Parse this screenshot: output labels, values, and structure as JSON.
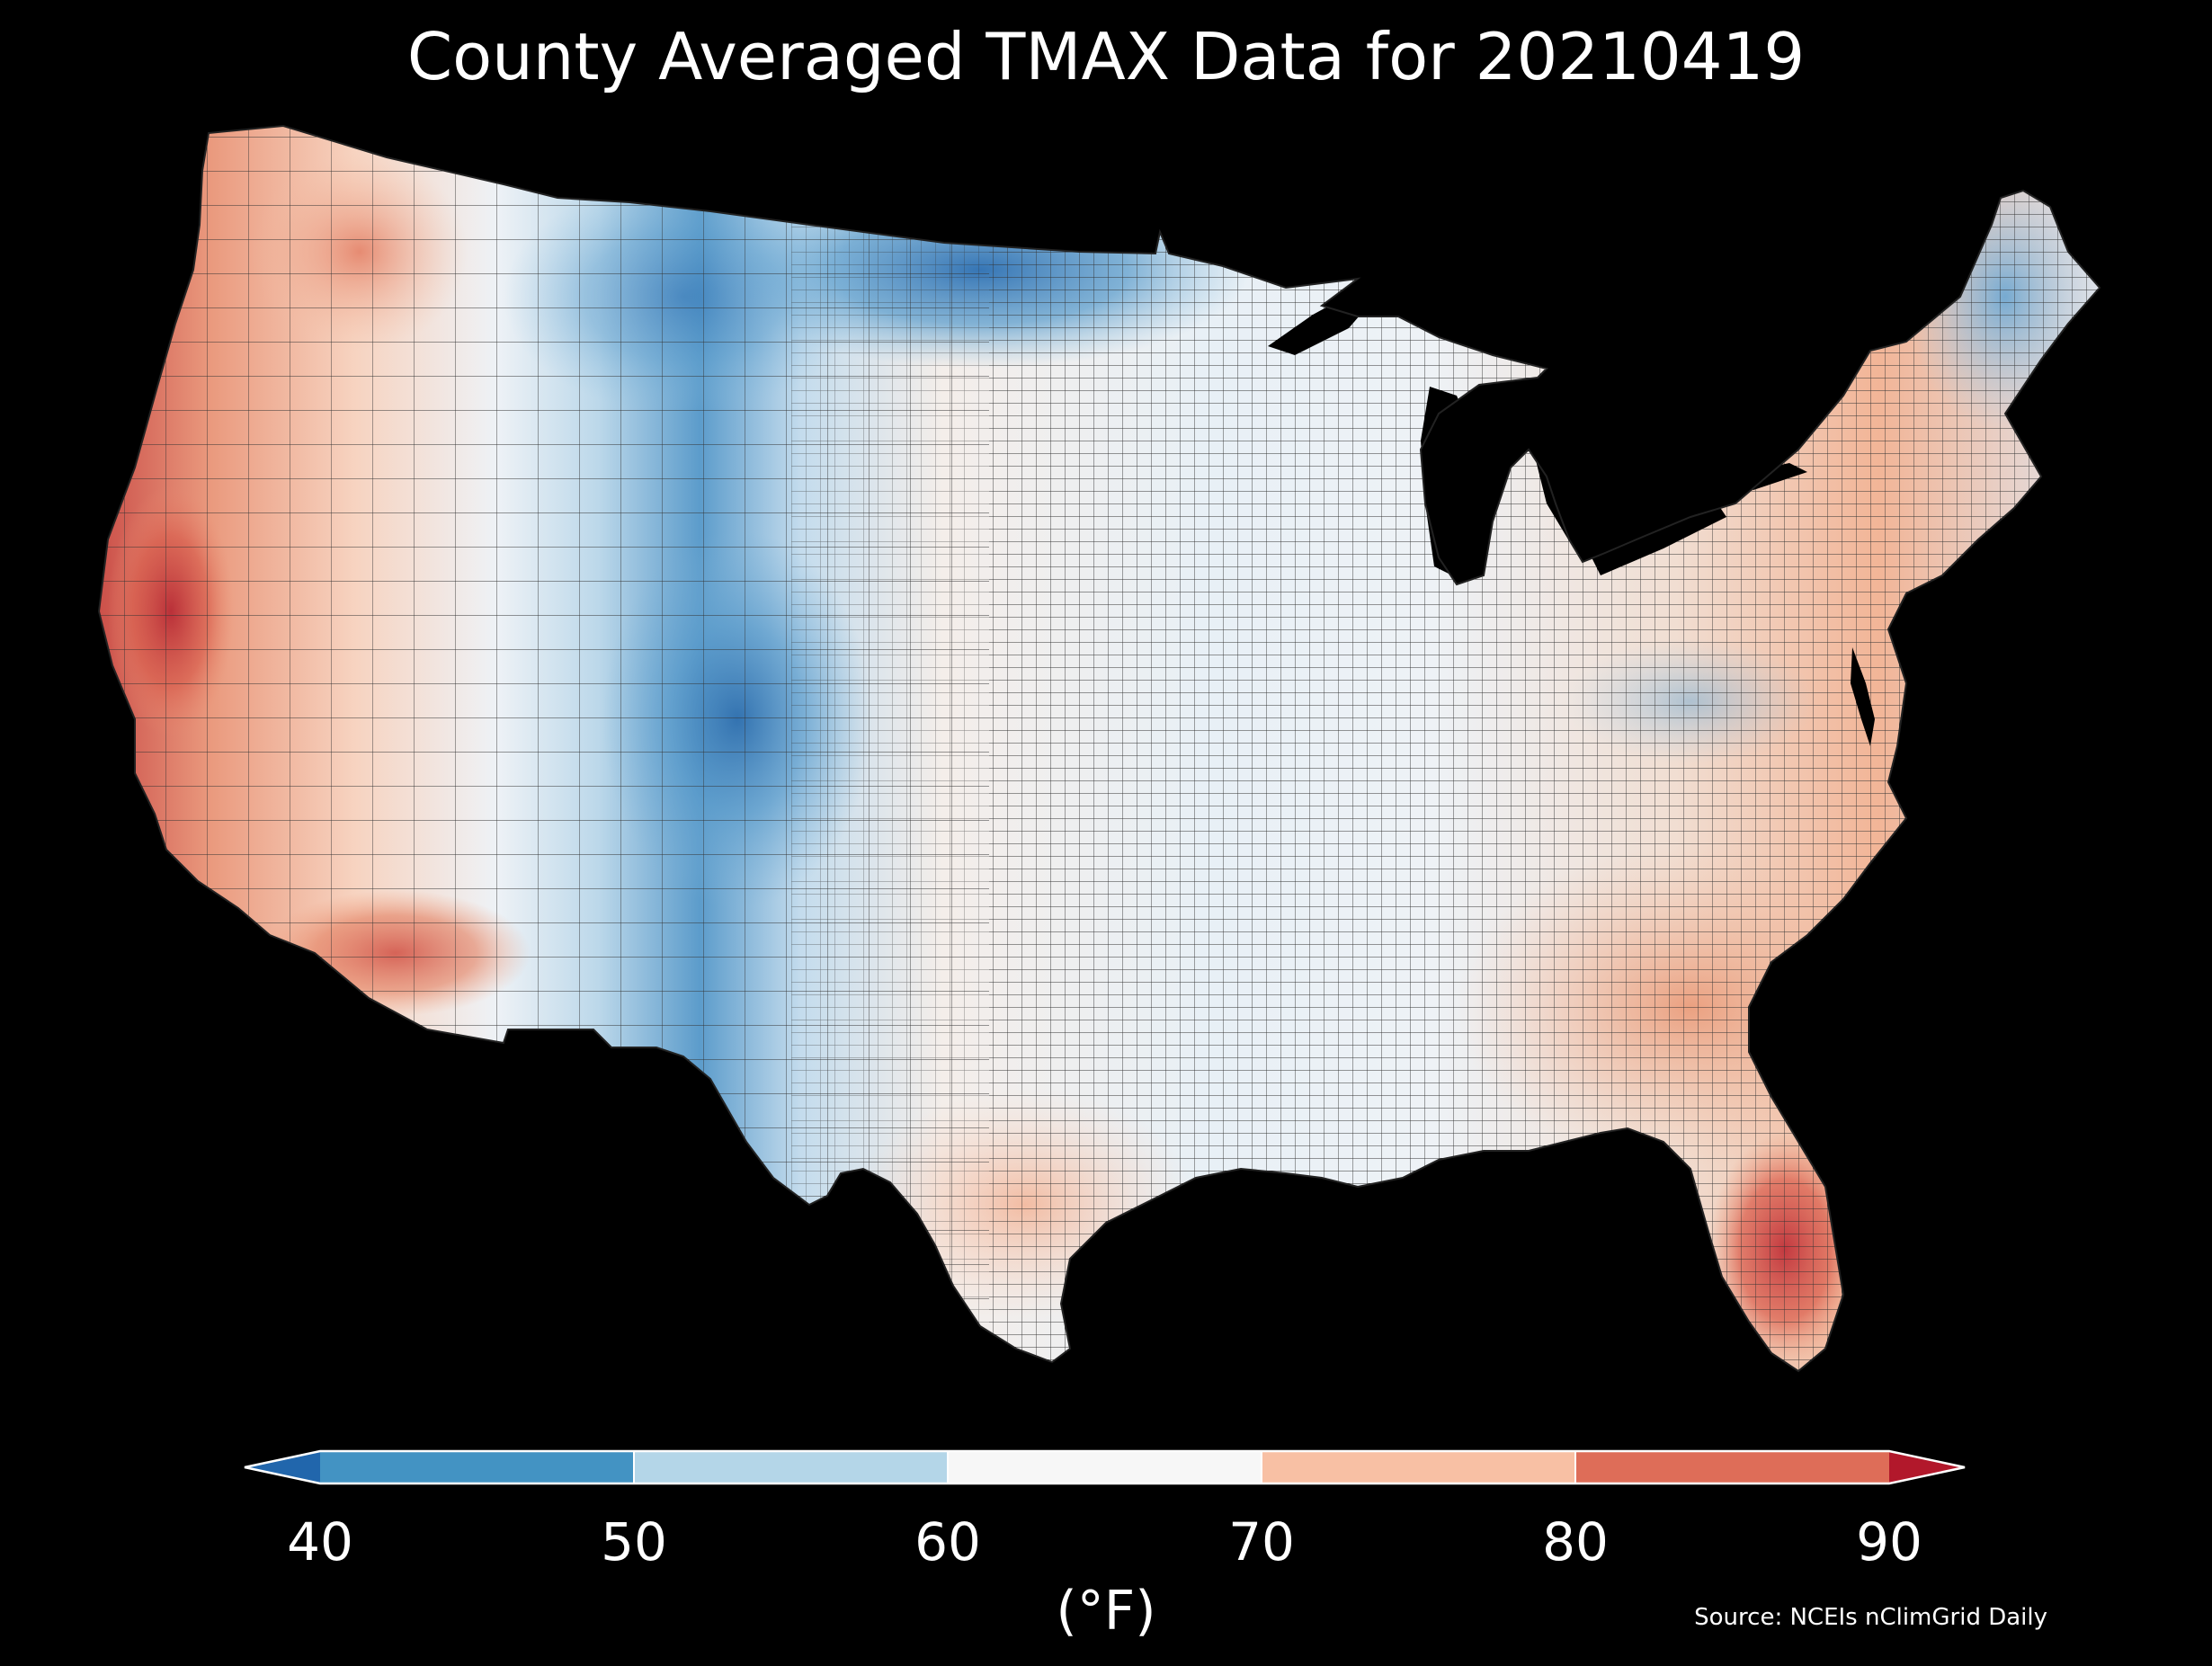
{
  "title": "County Averaged TMAX Data for 20210419",
  "colorbar": {
    "ticks": [
      "40",
      "50",
      "60",
      "70",
      "80",
      "90"
    ],
    "unit": "(°F)",
    "bins": [
      {
        "min": null,
        "max": 40,
        "color": "#2166ac"
      },
      {
        "min": 40,
        "max": 50,
        "color": "#4393c3"
      },
      {
        "min": 50,
        "max": 60,
        "color": "#b4d6e8"
      },
      {
        "min": 60,
        "max": 70,
        "color": "#f7f7f7"
      },
      {
        "min": 70,
        "max": 80,
        "color": "#f8c0a4"
      },
      {
        "min": 80,
        "max": 90,
        "color": "#de6d58"
      },
      {
        "min": 90,
        "max": null,
        "color": "#b2182b"
      }
    ]
  },
  "source": "Source: NCEIs nClimGrid Daily",
  "map": {
    "region": "Contiguous United States",
    "variable": "TMAX",
    "date": "20210419",
    "unit": "°F",
    "background": "#000000",
    "county_borders": "#333333",
    "water": "#000000"
  }
}
